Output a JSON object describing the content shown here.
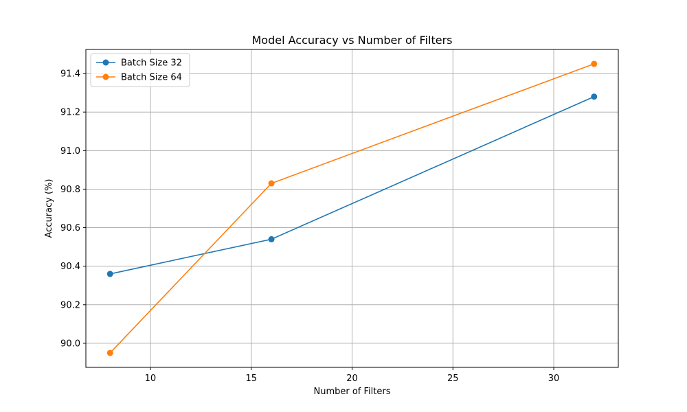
{
  "chart_data": {
    "type": "line",
    "title": "Model Accuracy vs Number of Filters",
    "xlabel": "Number of Filters",
    "ylabel": "Accuracy (%)",
    "x": [
      8,
      16,
      32
    ],
    "series": [
      {
        "name": "Batch Size 32",
        "values": [
          90.36,
          90.54,
          91.28
        ],
        "color": "#1f77b4"
      },
      {
        "name": "Batch Size 64",
        "values": [
          89.95,
          90.83,
          91.45
        ],
        "color": "#ff7f0e"
      }
    ],
    "xlim": [
      6.8,
      33.2
    ],
    "ylim": [
      89.875,
      91.525
    ],
    "xticks": [
      10,
      15,
      20,
      25,
      30
    ],
    "xtick_labels": [
      "10",
      "15",
      "20",
      "25",
      "30"
    ],
    "yticks": [
      90.0,
      90.2,
      90.4,
      90.6,
      90.8,
      91.0,
      91.2,
      91.4
    ],
    "ytick_labels": [
      "90.0",
      "90.2",
      "90.4",
      "90.6",
      "90.8",
      "91.0",
      "91.2",
      "91.4"
    ],
    "grid": true,
    "legend_position": "top-left"
  }
}
